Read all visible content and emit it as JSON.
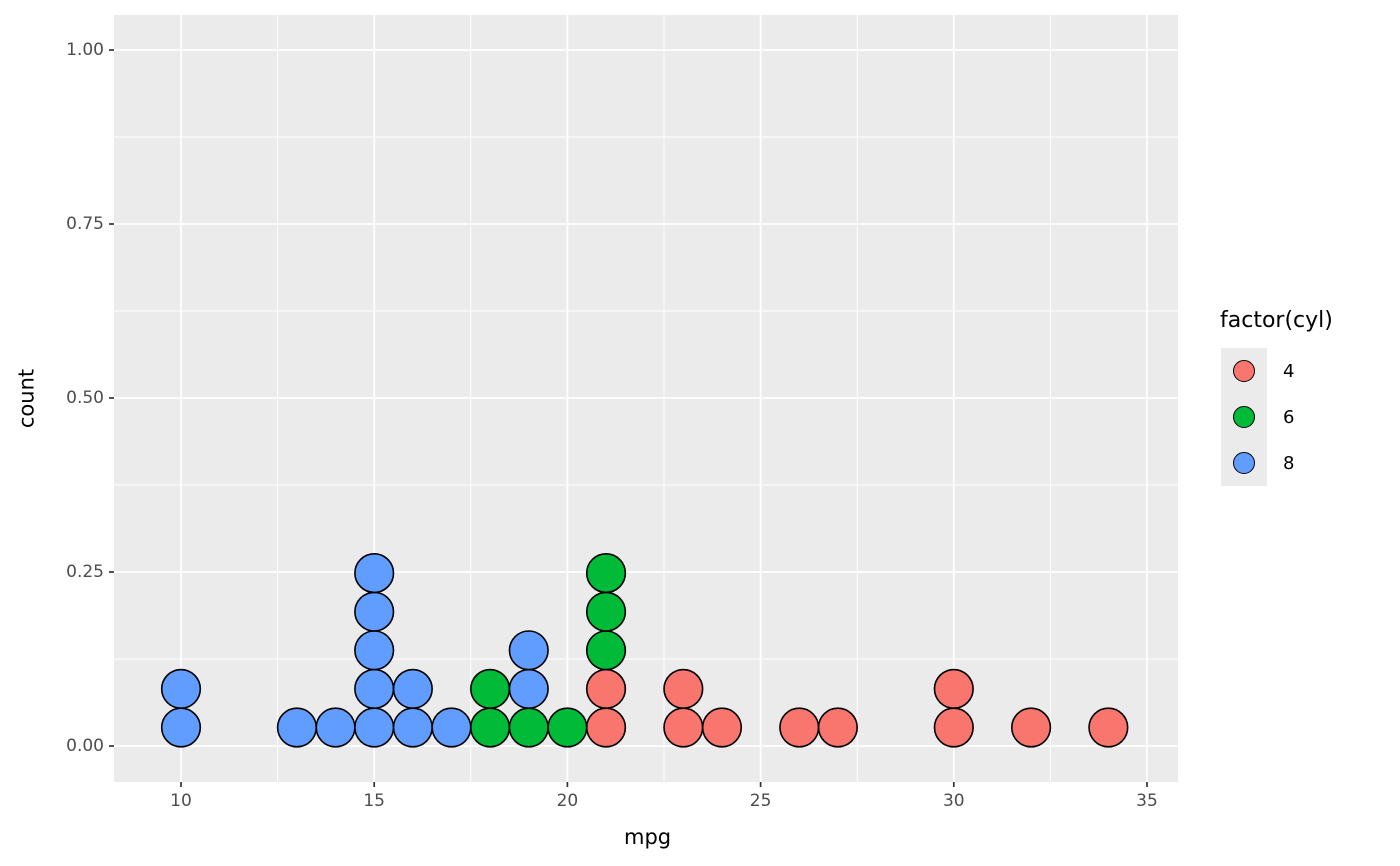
{
  "chart_data": {
    "type": "dotplot",
    "xlabel": "mpg",
    "ylabel": "count",
    "x_ticks": [
      {
        "value": 10,
        "label": "10"
      },
      {
        "value": 15,
        "label": "15"
      },
      {
        "value": 20,
        "label": "20"
      },
      {
        "value": 25,
        "label": "25"
      },
      {
        "value": 30,
        "label": "30"
      },
      {
        "value": 35,
        "label": "35"
      }
    ],
    "x_minor_ticks": [
      12.5,
      17.5,
      22.5,
      27.5,
      32.5
    ],
    "y_ticks": [
      {
        "value": 0.0,
        "label": "0.00"
      },
      {
        "value": 0.25,
        "label": "0.25"
      },
      {
        "value": 0.5,
        "label": "0.50"
      },
      {
        "value": 0.75,
        "label": "0.75"
      },
      {
        "value": 1.0,
        "label": "1.00"
      }
    ],
    "y_minor_ticks": [
      0.125,
      0.375,
      0.625,
      0.875
    ],
    "xlim": [
      8.25,
      35.8
    ],
    "ylim": [
      -0.054,
      1.06
    ],
    "grid": true,
    "panel_background": "#ebebeb",
    "gridline_color": "#ffffff",
    "dot_stroke_color": "#000000",
    "groups": {
      "4": "#F8766D",
      "6": "#00BA38",
      "8": "#619CFF"
    },
    "stacks": [
      {
        "mpg": 10,
        "dots": [
          "8",
          "8"
        ]
      },
      {
        "mpg": 13,
        "dots": [
          "8"
        ]
      },
      {
        "mpg": 14,
        "dots": [
          "8"
        ]
      },
      {
        "mpg": 15,
        "dots": [
          "8",
          "8",
          "8",
          "8",
          "8"
        ]
      },
      {
        "mpg": 16,
        "dots": [
          "8",
          "8"
        ]
      },
      {
        "mpg": 17,
        "dots": [
          "8"
        ]
      },
      {
        "mpg": 18,
        "dots": [
          "6",
          "6"
        ]
      },
      {
        "mpg": 19,
        "dots": [
          "6",
          "8",
          "8"
        ]
      },
      {
        "mpg": 20,
        "dots": [
          "6"
        ]
      },
      {
        "mpg": 21,
        "dots": [
          "4",
          "4",
          "6",
          "6",
          "6"
        ]
      },
      {
        "mpg": 23,
        "dots": [
          "4",
          "4"
        ]
      },
      {
        "mpg": 24,
        "dots": [
          "4"
        ]
      },
      {
        "mpg": 26,
        "dots": [
          "4"
        ]
      },
      {
        "mpg": 27,
        "dots": [
          "4"
        ]
      },
      {
        "mpg": 30,
        "dots": [
          "4",
          "4"
        ]
      },
      {
        "mpg": 32,
        "dots": [
          "4"
        ]
      },
      {
        "mpg": 34,
        "dots": [
          "4"
        ]
      }
    ],
    "legend": {
      "title": "factor(cyl)",
      "position": "right",
      "entries": [
        {
          "label": "4",
          "color": "#F8766D"
        },
        {
          "label": "6",
          "color": "#00BA38"
        },
        {
          "label": "8",
          "color": "#619CFF"
        }
      ]
    }
  }
}
